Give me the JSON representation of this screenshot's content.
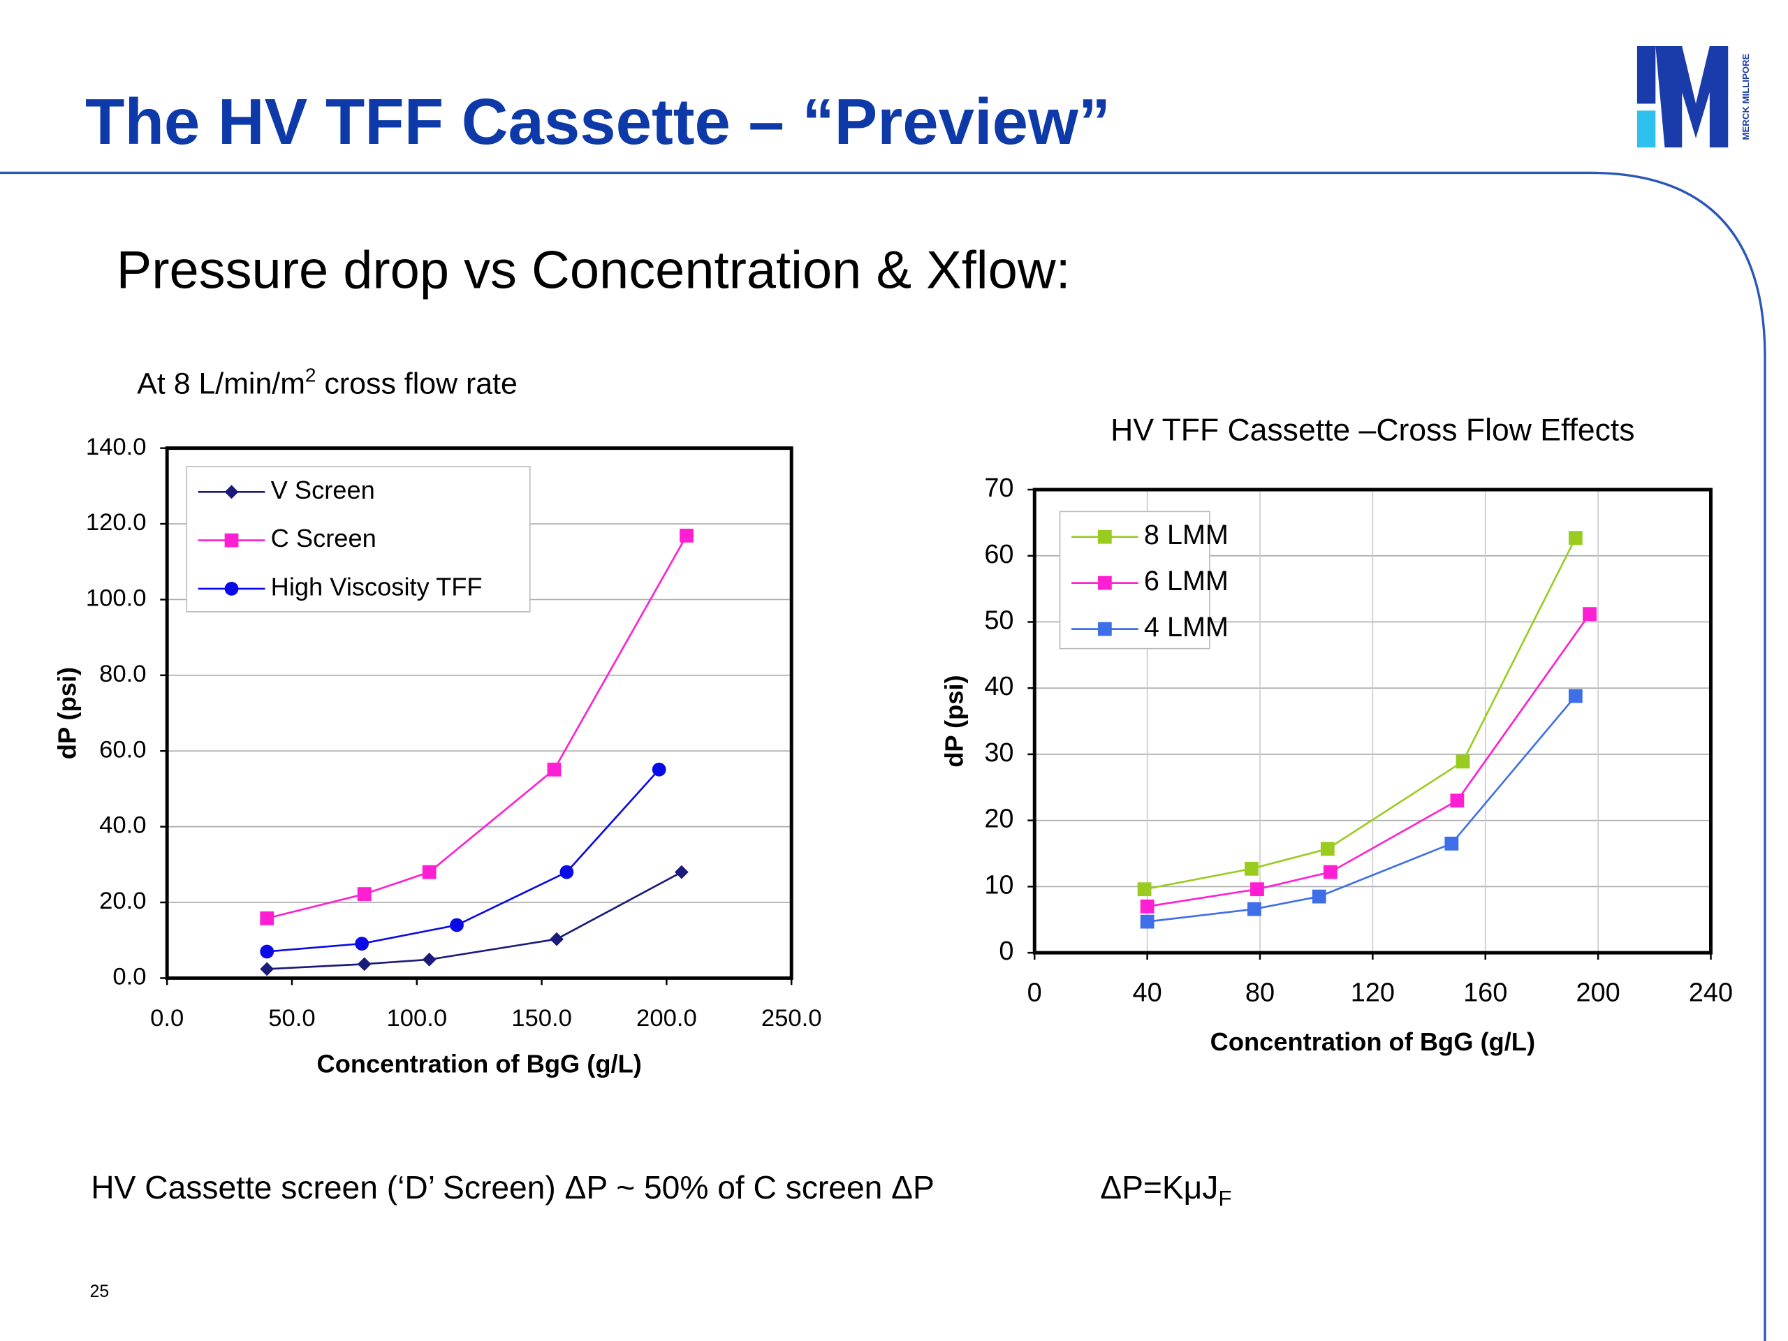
{
  "title": "The HV TFF Cassette – “Preview”",
  "subtitle": "Pressure drop vs Concentration & Xflow:",
  "logo_text": "MERCK MILLIPORE",
  "left_caption": {
    "before": "At 8 L/min/m",
    "sup": "2",
    "after": " cross flow rate"
  },
  "footer": {
    "note": "HV Cassette screen (‘D’ Screen) ΔP  ~ 50% of C screen ΔP",
    "formula": "ΔP=KμJ",
    "formula_sub": "F"
  },
  "page_number": "25",
  "chart_data": [
    {
      "type": "line",
      "xlabel": "Concentration of BgG (g/L)",
      "ylabel": "dP (psi)",
      "xlim": [
        0,
        250
      ],
      "ylim": [
        0,
        140
      ],
      "xticks": [
        {
          "value": 0,
          "label": "0.0"
        },
        {
          "value": 50,
          "label": "50.0"
        },
        {
          "value": 100,
          "label": "100.0"
        },
        {
          "value": 150,
          "label": "150.0"
        },
        {
          "value": 200,
          "label": "200.0"
        },
        {
          "value": 250,
          "label": "250.0"
        }
      ],
      "yticks": [
        {
          "value": 0,
          "label": "0.0"
        },
        {
          "value": 20,
          "label": "20.0"
        },
        {
          "value": 40,
          "label": "40.0"
        },
        {
          "value": 60,
          "label": "60.0"
        },
        {
          "value": 80,
          "label": "80.0"
        },
        {
          "value": 100,
          "label": "100.0"
        },
        {
          "value": 120,
          "label": "120.0"
        },
        {
          "value": 140,
          "label": "140.0"
        }
      ],
      "grid": "y",
      "legend": "upper left",
      "series": [
        {
          "name": "V Screen",
          "color": "#1a1a7a",
          "marker": "diamond",
          "x": [
            40,
            79,
            105,
            156,
            206
          ],
          "values": [
            2.4,
            3.7,
            4.9,
            10.3,
            28.0
          ]
        },
        {
          "name": "C Screen",
          "color": "#ff1fd2",
          "marker": "square",
          "x": [
            40,
            79,
            105,
            155,
            208
          ],
          "values": [
            15.8,
            22.2,
            28.0,
            55.1,
            116.9
          ]
        },
        {
          "name": "High Viscosity TFF",
          "color": "#0a0ae6",
          "marker": "circle",
          "x": [
            40,
            78,
            116,
            160,
            197
          ],
          "values": [
            7.0,
            9.1,
            14.0,
            28.0,
            55.1
          ]
        }
      ]
    },
    {
      "type": "line",
      "title": "HV TFF Cassette –Cross Flow Effects",
      "xlabel": "Concentration of BgG (g/L)",
      "ylabel": "dP (psi)",
      "xlim": [
        0,
        240
      ],
      "ylim": [
        0,
        70
      ],
      "xticks": [
        0,
        40,
        80,
        120,
        160,
        200,
        240
      ],
      "yticks": [
        0,
        10,
        20,
        30,
        40,
        50,
        60,
        70
      ],
      "grid": "both",
      "legend": "upper left",
      "series": [
        {
          "name": "8 LMM",
          "color": "#99cc1f",
          "marker": "square",
          "x": [
            39,
            77,
            104,
            152,
            192
          ],
          "values": [
            9.6,
            12.7,
            15.7,
            28.9,
            62.7
          ]
        },
        {
          "name": "6 LMM",
          "color": "#ff1fd2",
          "marker": "square",
          "x": [
            40,
            79,
            105,
            150,
            197
          ],
          "values": [
            7.0,
            9.6,
            12.2,
            23.0,
            51.2
          ]
        },
        {
          "name": "4 LMM",
          "color": "#3f6fe8",
          "marker": "square",
          "x": [
            40,
            78,
            101,
            148,
            192
          ],
          "values": [
            4.7,
            6.6,
            8.5,
            16.5,
            38.8
          ]
        }
      ]
    }
  ]
}
